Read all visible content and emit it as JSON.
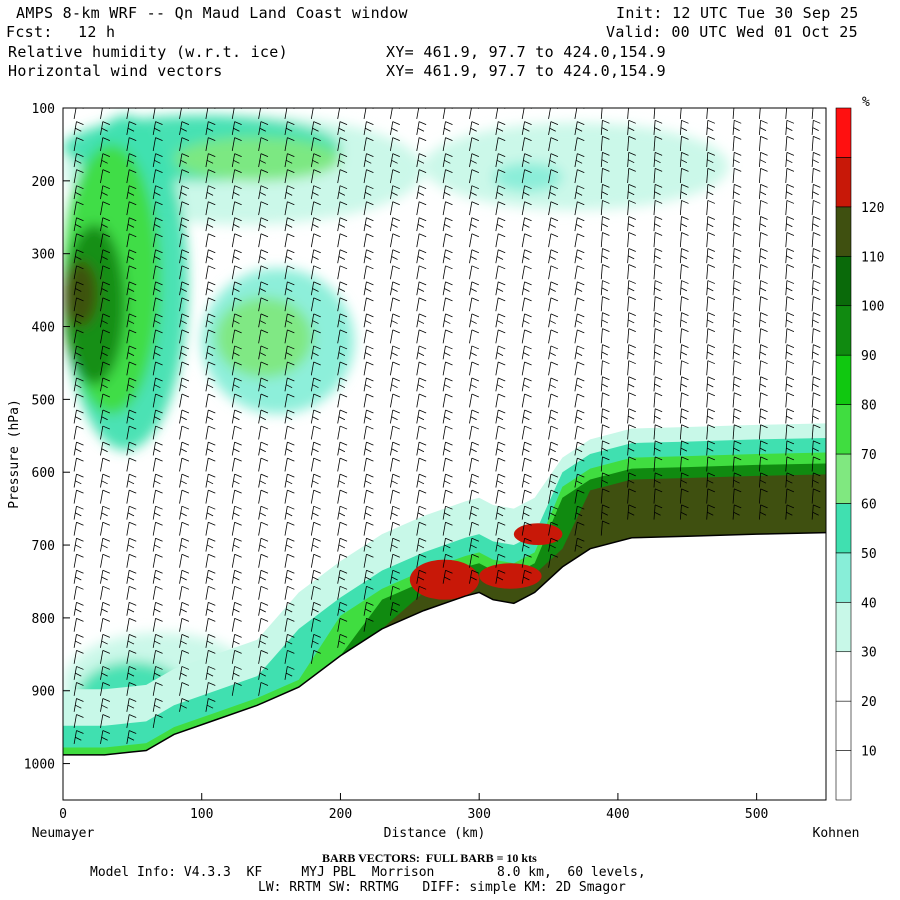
{
  "header": {
    "title": "AMPS 8-km WRF -- Qn Maud Land Coast window",
    "fcst_label": "Fcst:",
    "fcst_value": "12 h",
    "field1": "Relative humidity (w.r.t. ice)",
    "field2": "Horizontal wind vectors",
    "xy1": "XY= 461.9, 97.7 to 424.0,154.9",
    "xy2": "XY= 461.9, 97.7 to 424.0,154.9",
    "init": "Init: 12 UTC Tue 30 Sep 25",
    "valid": "Valid: 00 UTC Wed 01 Oct 25"
  },
  "footer": {
    "barb_note": "BARB VECTORS:  FULL BARB = 10 kts",
    "model_info_1": "Model Info: V4.3.3  KF     MYJ PBL  Morrison        8.0 km,  60 levels,",
    "model_info_2": "LW: RRTM SW: RRTMG   DIFF: simple KM: 2D Smagor"
  },
  "colors": {
    "c30": "#c8f8e8",
    "c40": "#88eed8",
    "c50": "#40e0b0",
    "c60": "#80e880",
    "c70": "#40dd40",
    "c80": "#10c810",
    "c90": "#108a10",
    "c100": "#0a6a0a",
    "c110": "#3f5010",
    "c120": "#c81808",
    "c130": "#ff1010"
  },
  "chart_data": {
    "type": "heatmap",
    "title": "Relative humidity (w.r.t. ice)",
    "overlay": "Horizontal wind vectors",
    "xlabel": "Distance (km)",
    "ylabel": "Pressure (hPa)",
    "x_left_label": "Neumayer",
    "x_right_label": "Kohnen",
    "xlim": [
      0,
      550
    ],
    "ylim": [
      1050,
      100
    ],
    "x_ticks": [
      0,
      100,
      200,
      300,
      400,
      500
    ],
    "y_ticks": [
      100,
      200,
      300,
      400,
      500,
      600,
      700,
      800,
      900,
      1000
    ],
    "colorbar": {
      "unit": "%",
      "levels": [
        10,
        20,
        30,
        40,
        50,
        60,
        70,
        80,
        90,
        100,
        110,
        120
      ],
      "colors": [
        "#ffffff",
        "#ffffff",
        "#ffffff",
        "#c8f8e8",
        "#88eed8",
        "#40e0b0",
        "#80e880",
        "#40dd40",
        "#10c810",
        "#108a10",
        "#0a6a0a",
        "#3f5010",
        "#c81808",
        "#ff1010"
      ]
    },
    "terrain_surface_hPa": [
      [
        0,
        988
      ],
      [
        30,
        988
      ],
      [
        60,
        982
      ],
      [
        80,
        960
      ],
      [
        110,
        940
      ],
      [
        140,
        920
      ],
      [
        170,
        895
      ],
      [
        200,
        852
      ],
      [
        230,
        815
      ],
      [
        260,
        790
      ],
      [
        290,
        770
      ],
      [
        300,
        765
      ],
      [
        310,
        775
      ],
      [
        325,
        780
      ],
      [
        340,
        765
      ],
      [
        360,
        730
      ],
      [
        380,
        705
      ],
      [
        410,
        690
      ],
      [
        450,
        688
      ],
      [
        500,
        685
      ],
      [
        550,
        683
      ]
    ]
  }
}
